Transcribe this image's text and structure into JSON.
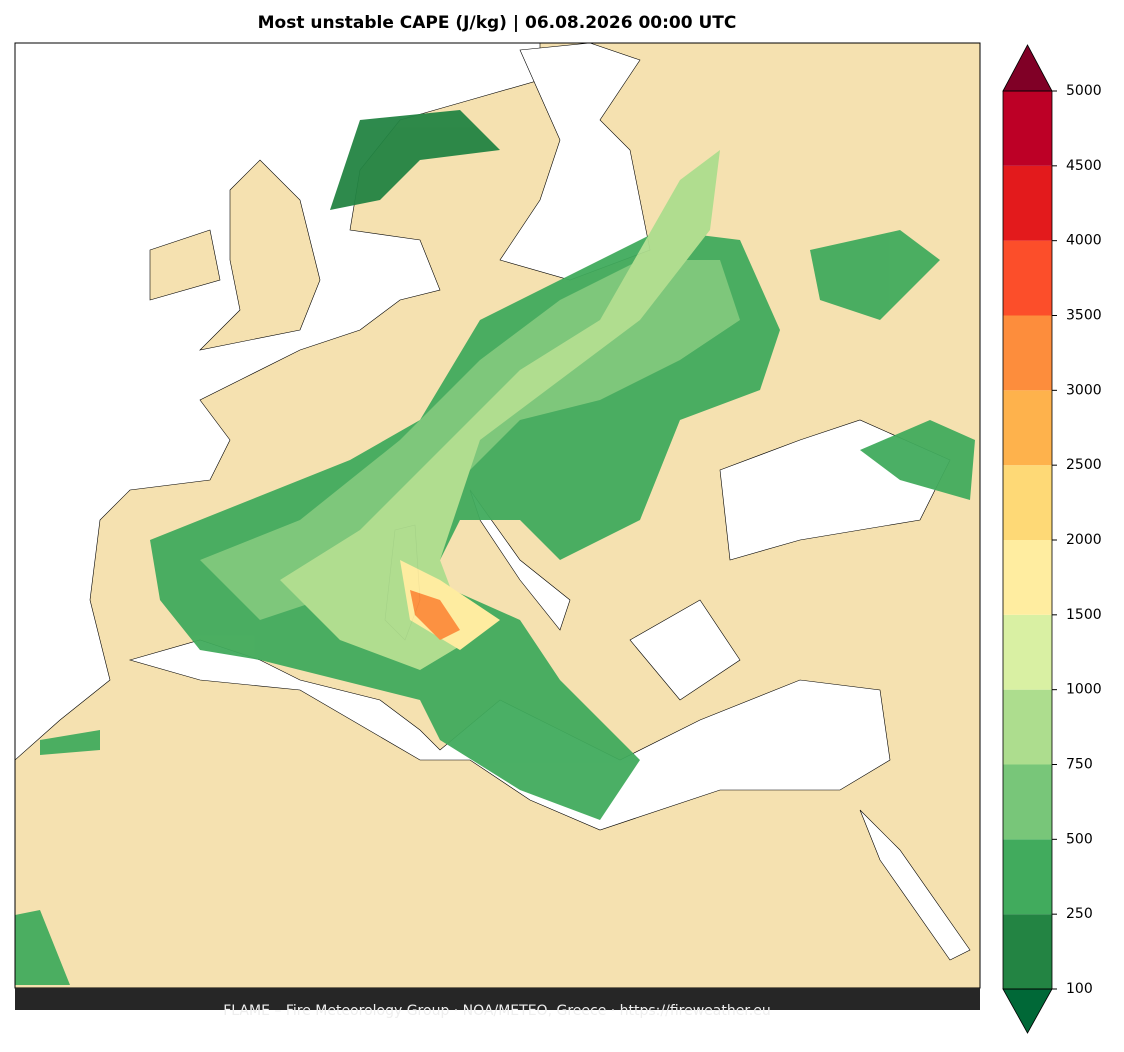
{
  "title": "Most unstable CAPE (J/kg)  |  06.08.2026 00:00 UTC",
  "footer": "FLAME – Fire Meteorology Group · NOA/METEO, Greece · https://fireweather.eu",
  "colorbar": {
    "ticks": [
      100,
      250,
      500,
      750,
      1000,
      1500,
      2000,
      2500,
      3000,
      3500,
      4000,
      4500,
      5000
    ],
    "colors": [
      "#238443",
      "#41ab5d",
      "#78c679",
      "#addd8e",
      "#d9f0a3",
      "#ffeda0",
      "#fed976",
      "#feb24c",
      "#fd8d3c",
      "#fc4e2a",
      "#e31a1c",
      "#bd0026"
    ],
    "under_color": "#006837",
    "over_color": "#800026"
  }
}
